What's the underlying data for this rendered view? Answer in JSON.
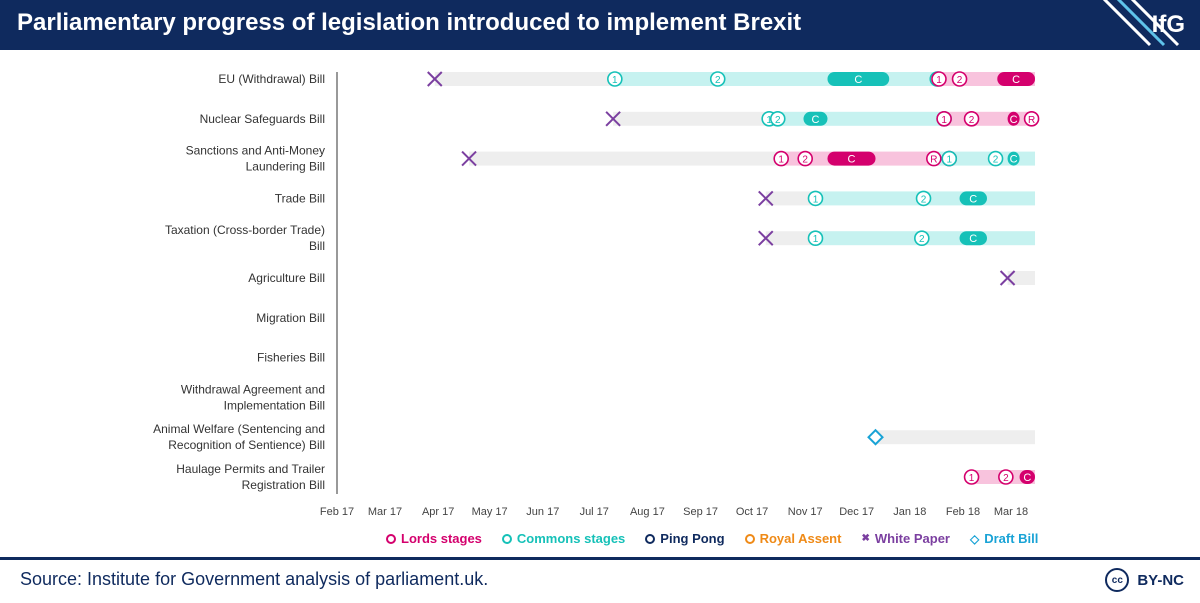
{
  "header": {
    "title": "Parliamentary progress of legislation introduced to implement Brexit",
    "logo": "IfG"
  },
  "footer": {
    "source": "Source: Institute for Government analysis of parliament.uk.",
    "license": "BY-NC",
    "license_icon": "cc-icon"
  },
  "legend": [
    {
      "label": "Lords stages",
      "color": "#d4006d",
      "marker": "circle"
    },
    {
      "label": "Commons stages",
      "color": "#16c1b8",
      "marker": "circle"
    },
    {
      "label": "Ping Pong",
      "color": "#0f2a5e",
      "marker": "circle"
    },
    {
      "label": "Royal Assent",
      "color": "#ef8a17",
      "marker": "circle"
    },
    {
      "label": "White Paper",
      "color": "#7b3fa0",
      "marker": "cross"
    },
    {
      "label": "Draft Bill",
      "color": "#19a3d6",
      "marker": "diamond"
    }
  ],
  "colors": {
    "lords": "#d4006d",
    "lords_bg": "#f8c3dd",
    "commons": "#16c1b8",
    "commons_bg": "#c6f2f0",
    "pending_bg": "#eeeeee",
    "white_paper": "#7b3fa0",
    "draft_bill": "#19a3d6"
  },
  "chart_data": {
    "type": "timeline",
    "x_axis": {
      "ticks": [
        "Feb 17",
        "Mar 17",
        "Apr 17",
        "May 17",
        "Jun 17",
        "Jul 17",
        "Aug 17",
        "Sep 17",
        "Oct 17",
        "Nov 17",
        "Dec 17",
        "Jan 18",
        "Feb 18",
        "Mar 18"
      ],
      "range": [
        "2017-02-01",
        "2018-03-15"
      ]
    },
    "bills": [
      {
        "name": "EU (Withdrawal) Bill",
        "segments": [
          {
            "start": "2017-03-30",
            "end": "2017-07-13",
            "house": "pending"
          },
          {
            "start": "2017-07-13",
            "end": "2018-01-18",
            "house": "commons"
          },
          {
            "start": "2018-01-18",
            "end": "2018-03-15",
            "house": "lords"
          }
        ],
        "committee": [
          {
            "start": "2017-11-14",
            "end": "2017-12-20",
            "house": "commons",
            "label": "C"
          },
          {
            "start": "2018-02-21",
            "end": "2018-03-15",
            "house": "lords",
            "label": "C"
          }
        ],
        "markers": [
          {
            "date": "2017-03-30",
            "kind": "white_paper"
          },
          {
            "date": "2017-07-13",
            "kind": "commons",
            "label": "1"
          },
          {
            "date": "2017-09-11",
            "kind": "commons",
            "label": "2"
          },
          {
            "date": "2018-01-17",
            "kind": "commons",
            "label": "3"
          },
          {
            "date": "2018-01-18",
            "kind": "lords",
            "label": "1"
          },
          {
            "date": "2018-01-30",
            "kind": "lords",
            "label": "2"
          }
        ]
      },
      {
        "name": "Nuclear Safeguards Bill",
        "segments": [
          {
            "start": "2017-07-12",
            "end": "2017-10-11",
            "house": "pending"
          },
          {
            "start": "2017-10-11",
            "end": "2018-01-21",
            "house": "commons"
          },
          {
            "start": "2018-01-21",
            "end": "2018-03-15",
            "house": "lords"
          }
        ],
        "committee": [
          {
            "start": "2017-10-31",
            "end": "2017-11-14",
            "house": "commons",
            "label": "C"
          },
          {
            "start": "2018-02-27",
            "end": "2018-03-06",
            "house": "lords",
            "label": "C"
          }
        ],
        "markers": [
          {
            "date": "2017-07-12",
            "kind": "white_paper"
          },
          {
            "date": "2017-10-11",
            "kind": "commons",
            "label": "1"
          },
          {
            "date": "2017-10-16",
            "kind": "commons",
            "label": "2"
          },
          {
            "date": "2018-01-21",
            "kind": "commons",
            "label": "3"
          },
          {
            "date": "2018-01-21",
            "kind": "lords",
            "label": "1"
          },
          {
            "date": "2018-02-06",
            "kind": "lords",
            "label": "2"
          },
          {
            "date": "2018-03-13",
            "kind": "lords",
            "label": "R"
          }
        ]
      },
      {
        "name": "Sanctions and Anti-Money Laundering Bill",
        "segments": [
          {
            "start": "2017-04-19",
            "end": "2017-10-18",
            "house": "pending"
          },
          {
            "start": "2017-10-18",
            "end": "2018-01-18",
            "house": "lords"
          },
          {
            "start": "2018-01-18",
            "end": "2018-03-15",
            "house": "commons"
          }
        ],
        "committee": [
          {
            "start": "2017-11-14",
            "end": "2017-12-12",
            "house": "lords",
            "label": "C"
          },
          {
            "start": "2018-02-27",
            "end": "2018-03-06",
            "house": "commons",
            "label": "C"
          }
        ],
        "markers": [
          {
            "date": "2017-04-19",
            "kind": "white_paper"
          },
          {
            "date": "2017-10-18",
            "kind": "lords",
            "label": "1"
          },
          {
            "date": "2017-11-01",
            "kind": "lords",
            "label": "2"
          },
          {
            "date": "2018-01-15",
            "kind": "lords",
            "label": "R"
          },
          {
            "date": "2018-01-24",
            "kind": "lords",
            "label": "3"
          },
          {
            "date": "2018-01-24",
            "kind": "commons",
            "label": "1"
          },
          {
            "date": "2018-02-20",
            "kind": "commons",
            "label": "2"
          }
        ]
      },
      {
        "name": "Trade Bill",
        "segments": [
          {
            "start": "2017-10-09",
            "end": "2017-11-07",
            "house": "pending"
          },
          {
            "start": "2017-11-07",
            "end": "2018-03-15",
            "house": "commons"
          }
        ],
        "committee": [
          {
            "start": "2018-01-30",
            "end": "2018-02-15",
            "house": "commons",
            "label": "C"
          }
        ],
        "markers": [
          {
            "date": "2017-10-09",
            "kind": "white_paper"
          },
          {
            "date": "2017-11-07",
            "kind": "commons",
            "label": "1"
          },
          {
            "date": "2018-01-09",
            "kind": "commons",
            "label": "2"
          }
        ]
      },
      {
        "name": "Taxation (Cross-border Trade) Bill",
        "segments": [
          {
            "start": "2017-10-09",
            "end": "2017-11-07",
            "house": "pending"
          },
          {
            "start": "2017-11-07",
            "end": "2018-03-15",
            "house": "commons"
          }
        ],
        "committee": [
          {
            "start": "2018-01-30",
            "end": "2018-02-15",
            "house": "commons",
            "label": "C"
          }
        ],
        "markers": [
          {
            "date": "2017-10-09",
            "kind": "white_paper"
          },
          {
            "date": "2017-11-07",
            "kind": "commons",
            "label": "1"
          },
          {
            "date": "2018-01-08",
            "kind": "commons",
            "label": "2"
          }
        ]
      },
      {
        "name": "Agriculture Bill",
        "segments": [
          {
            "start": "2018-02-27",
            "end": "2018-03-15",
            "house": "pending"
          }
        ],
        "committee": [],
        "markers": [
          {
            "date": "2018-02-27",
            "kind": "white_paper"
          }
        ]
      },
      {
        "name": "Migration Bill",
        "segments": [],
        "committee": [],
        "markers": []
      },
      {
        "name": "Fisheries Bill",
        "segments": [],
        "committee": [],
        "markers": []
      },
      {
        "name": "Withdrawal Agreement and Implementation Bill",
        "segments": [],
        "committee": [],
        "markers": []
      },
      {
        "name": "Animal Welfare (Sentencing and Recognition of Sentience) Bill",
        "segments": [
          {
            "start": "2017-12-12",
            "end": "2018-03-15",
            "house": "pending"
          }
        ],
        "committee": [],
        "markers": [
          {
            "date": "2017-12-12",
            "kind": "draft_bill"
          }
        ]
      },
      {
        "name": "Haulage Permits and Trailer Registration Bill",
        "segments": [
          {
            "start": "2018-02-06",
            "end": "2018-03-15",
            "house": "lords"
          }
        ],
        "committee": [
          {
            "start": "2018-03-06",
            "end": "2018-03-15",
            "house": "lords",
            "label": "C"
          }
        ],
        "markers": [
          {
            "date": "2018-02-06",
            "kind": "lords",
            "label": "1"
          },
          {
            "date": "2018-02-26",
            "kind": "lords",
            "label": "2"
          }
        ]
      }
    ]
  }
}
